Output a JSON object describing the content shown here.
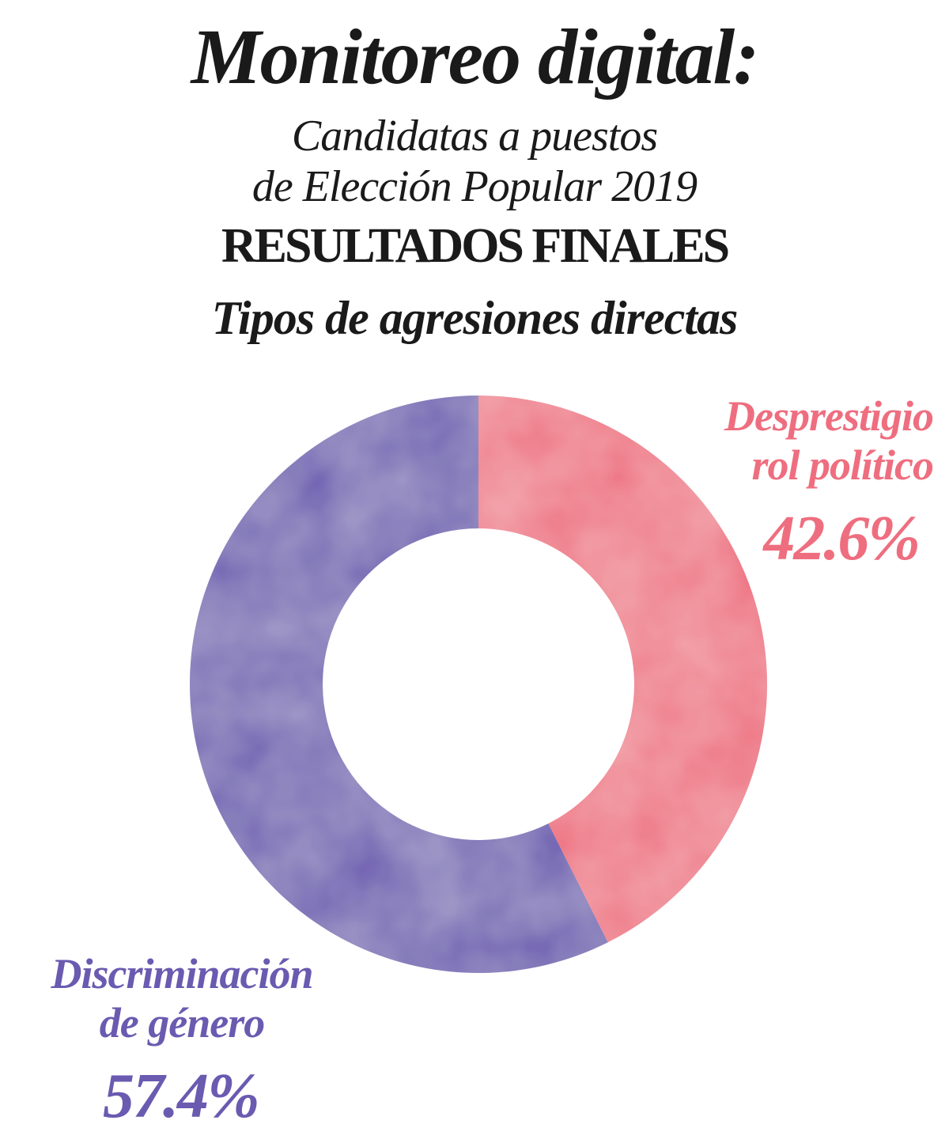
{
  "header": {
    "title": "Monitoreo digital:",
    "subtitle_line1": "Candidatas a puestos",
    "subtitle_line2": "de Elección Popular 2019",
    "results": "RESULTADOS FINALES",
    "chart_title": "Tipos de agresiones directas"
  },
  "segments": [
    {
      "label_line1": "Desprestigio",
      "label_line2": "rol político",
      "percent_label": "42.6%",
      "color": "#ee6e7f"
    },
    {
      "label_line1": "Discriminación",
      "label_line2": "de género",
      "percent_label": "57.4%",
      "color": "#6a5ab0"
    }
  ],
  "chart_data": {
    "type": "pie",
    "subtype": "donut",
    "title": "Tipos de agresiones directas",
    "subtitle": "Monitoreo digital: Candidatas a puestos de Elección Popular 2019 — RESULTADOS FINALES",
    "categories": [
      "Desprestigio rol político",
      "Discriminación de género"
    ],
    "values": [
      42.6,
      57.4
    ],
    "unit": "%",
    "colors": [
      "#ee6e7f",
      "#6a5ab0"
    ],
    "start_angle": "12 o'clock, clockwise",
    "legend": "direct labels"
  }
}
